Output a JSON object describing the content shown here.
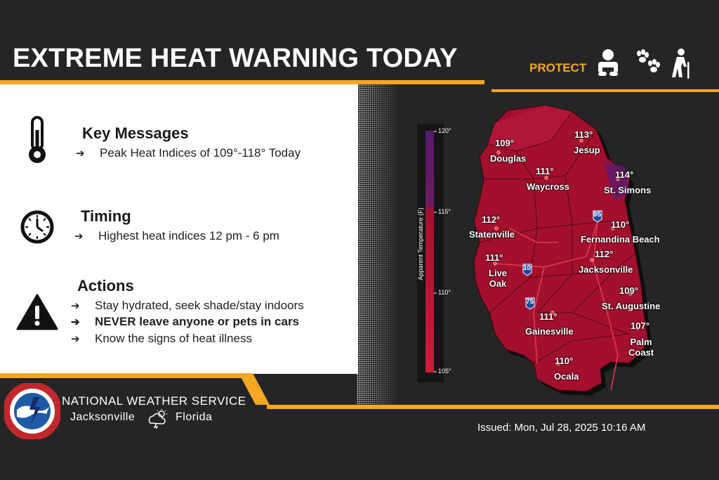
{
  "title": "EXTREME HEAT WARNING TODAY",
  "protect": {
    "label": "PROTECT",
    "icons": [
      "baby-icon",
      "paw-prints-icon",
      "elderly-person-icon"
    ]
  },
  "sections": {
    "key_messages": {
      "title": "Key Messages",
      "icon": "thermometer-icon",
      "bullets": [
        "Peak Heat Indices of 109°-118° Today"
      ]
    },
    "timing": {
      "title": "Timing",
      "icon": "clock-icon",
      "bullets": [
        "Highest heat indices 12 pm - 6 pm"
      ]
    },
    "actions": {
      "title": "Actions",
      "icon": "warning-icon",
      "bullets": [
        "Stay hydrated, seek shade/stay indoors",
        "NEVER leave anyone or pets in cars",
        "Know the signs of heat illness"
      ]
    }
  },
  "arrow_glyph": "➔",
  "nws": {
    "name": "NATIONAL WEATHER SERVICE",
    "city": "Jacksonville",
    "state": "Florida",
    "logo_text": "NATIONAL WEATHER SERVICE"
  },
  "issued": "Issued: Mon, Jul 28, 2025 10:16 AM",
  "legend": {
    "title": "Apparent Temperature (F)",
    "ticks": [
      "120°",
      "115°",
      "110°",
      "105°"
    ]
  },
  "map": {
    "cities": [
      {
        "name": "Douglas",
        "temp": "109°"
      },
      {
        "name": "Jesup",
        "temp": "113°"
      },
      {
        "name": "Waycross",
        "temp": "111°"
      },
      {
        "name": "St. Simons",
        "temp": "114°"
      },
      {
        "name": "Statenville",
        "temp": "112°"
      },
      {
        "name": "Fernandina Beach",
        "temp": "110°"
      },
      {
        "name": "Jacksonville",
        "temp": "112°"
      },
      {
        "name": "Live\nOak",
        "temp": "111°"
      },
      {
        "name": "St. Augustine",
        "temp": "109°"
      },
      {
        "name": "Gainesville",
        "temp": "111°"
      },
      {
        "name": "Palm\nCoast",
        "temp": "107°"
      },
      {
        "name": "Ocala",
        "temp": "110°"
      }
    ],
    "highways": [
      "95",
      "10",
      "75"
    ]
  },
  "colors": {
    "accent": "#f5a623",
    "map_fill": "#a3102e",
    "background": "#252525"
  }
}
